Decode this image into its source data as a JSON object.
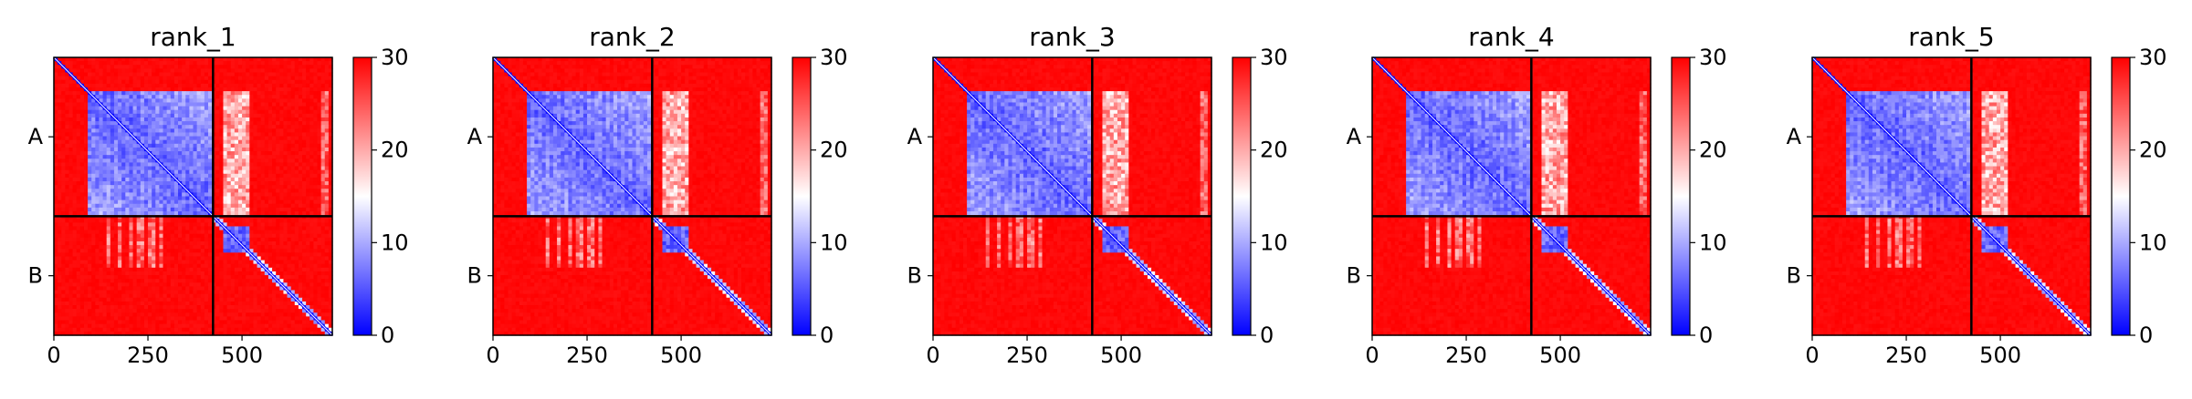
{
  "colors": {
    "low": "#0000ff",
    "mid": "#ffffff",
    "high": "#ff0000",
    "divider": "#000000"
  },
  "chart_data": [
    {
      "type": "heatmap",
      "title": "rank_1",
      "colormap": "bwr",
      "value_range": [
        0,
        30
      ],
      "colorbar_ticks": [
        0,
        10,
        20,
        30
      ],
      "x_ticks": [
        0,
        250,
        500
      ],
      "chain_labels": [
        "A",
        "B"
      ],
      "chain_boundary": 423,
      "length": 740,
      "grid": false
    },
    {
      "type": "heatmap",
      "title": "rank_2",
      "colormap": "bwr",
      "value_range": [
        0,
        30
      ],
      "colorbar_ticks": [
        0,
        10,
        20,
        30
      ],
      "x_ticks": [
        0,
        250,
        500
      ],
      "chain_labels": [
        "A",
        "B"
      ],
      "chain_boundary": 423,
      "length": 740,
      "grid": false
    },
    {
      "type": "heatmap",
      "title": "rank_3",
      "colormap": "bwr",
      "value_range": [
        0,
        30
      ],
      "colorbar_ticks": [
        0,
        10,
        20,
        30
      ],
      "x_ticks": [
        0,
        250,
        500
      ],
      "chain_labels": [
        "A",
        "B"
      ],
      "chain_boundary": 423,
      "length": 740,
      "grid": false
    },
    {
      "type": "heatmap",
      "title": "rank_4",
      "colormap": "bwr",
      "value_range": [
        0,
        30
      ],
      "colorbar_ticks": [
        0,
        10,
        20,
        30
      ],
      "x_ticks": [
        0,
        250,
        500
      ],
      "chain_labels": [
        "A",
        "B"
      ],
      "chain_boundary": 423,
      "length": 740,
      "grid": false
    },
    {
      "type": "heatmap",
      "title": "rank_5",
      "colormap": "bwr",
      "value_range": [
        0,
        30
      ],
      "colorbar_ticks": [
        0,
        10,
        20,
        30
      ],
      "x_ticks": [
        0,
        250,
        500
      ],
      "chain_labels": [
        "A",
        "B"
      ],
      "chain_boundary": 423,
      "length": 740,
      "grid": false
    }
  ]
}
